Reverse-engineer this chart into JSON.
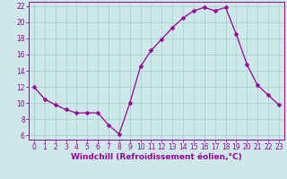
{
  "x": [
    0,
    1,
    2,
    3,
    4,
    5,
    6,
    7,
    8,
    9,
    10,
    11,
    12,
    13,
    14,
    15,
    16,
    17,
    18,
    19,
    20,
    21,
    22,
    23
  ],
  "y": [
    12,
    10.5,
    9.8,
    9.2,
    8.8,
    8.8,
    8.8,
    7.3,
    6.2,
    10.0,
    14.5,
    16.5,
    17.9,
    19.3,
    20.5,
    21.4,
    21.8,
    21.4,
    21.8,
    18.5,
    14.8,
    12.2,
    11.0,
    9.8
  ],
  "line_color": "#990099",
  "marker": "D",
  "marker_size": 2.5,
  "background_color": "#cce8e8",
  "grid_color": "#aacfcf",
  "xlabel": "Windchill (Refroidissement éolien,°C)",
  "xlim": [
    -0.5,
    23.5
  ],
  "ylim": [
    5.5,
    22.5
  ],
  "yticks": [
    6,
    8,
    10,
    12,
    14,
    16,
    18,
    20,
    22
  ],
  "xticks": [
    0,
    1,
    2,
    3,
    4,
    5,
    6,
    7,
    8,
    9,
    10,
    11,
    12,
    13,
    14,
    15,
    16,
    17,
    18,
    19,
    20,
    21,
    22,
    23
  ],
  "tick_color": "#990099",
  "label_color": "#990099",
  "tick_fontsize": 5.5,
  "xlabel_fontsize": 6.5
}
